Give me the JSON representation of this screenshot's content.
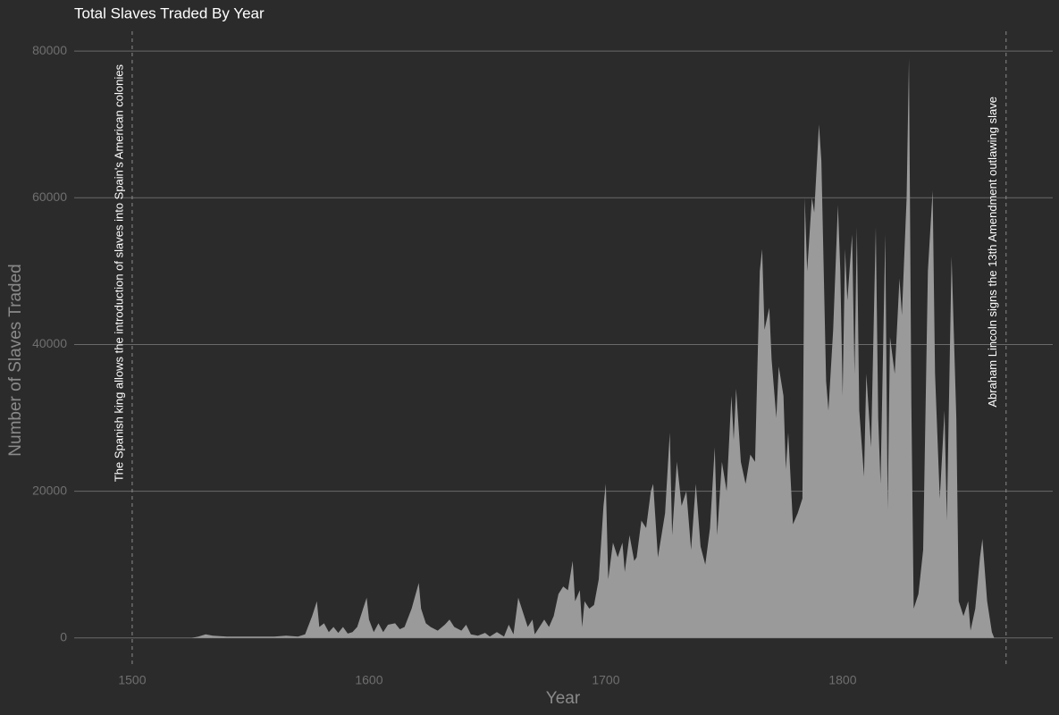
{
  "chart_data": {
    "type": "area",
    "title": "Total Slaves Traded By Year",
    "x_label": "Year",
    "y_label": "Number of Slaves Traded",
    "xlim": [
      1475.5,
      1888.7
    ],
    "ylim": [
      -3800,
      83300
    ],
    "xticks": [
      1500,
      1600,
      1700,
      1800
    ],
    "yticks": [
      0,
      20000,
      40000,
      60000,
      80000
    ],
    "grid": true,
    "color": "#9a9a9a",
    "vlines": [
      {
        "x": 1500,
        "label": "The Spanish king allows the introduction of slaves into Spain's American colonies"
      },
      {
        "x": 1869,
        "label": "Abraham Lincoln signs the 13th Amendment outlawing slave"
      }
    ],
    "x": [
      1525,
      1528,
      1531,
      1534,
      1540,
      1550,
      1560,
      1565,
      1570,
      1573,
      1576,
      1578,
      1579,
      1581,
      1583,
      1585,
      1587,
      1589,
      1591,
      1593,
      1595,
      1597,
      1599,
      1600,
      1602,
      1604,
      1606,
      1608,
      1611,
      1613,
      1615,
      1618,
      1621,
      1622,
      1624,
      1626,
      1629,
      1632,
      1634,
      1636,
      1639,
      1641,
      1643,
      1646,
      1649,
      1651,
      1654,
      1657,
      1659,
      1661,
      1663,
      1665,
      1667,
      1669,
      1670,
      1672,
      1674,
      1676,
      1678,
      1680,
      1682,
      1684,
      1686,
      1687,
      1689,
      1690,
      1691,
      1693,
      1695,
      1697,
      1699,
      1700,
      1701,
      1703,
      1705,
      1707,
      1708,
      1710,
      1712,
      1713,
      1715,
      1717,
      1719,
      1720,
      1722,
      1725,
      1727,
      1728,
      1730,
      1732,
      1734,
      1736,
      1738,
      1740,
      1742,
      1744,
      1746,
      1747,
      1749,
      1751,
      1753,
      1754,
      1755,
      1757,
      1759,
      1761,
      1763,
      1765,
      1766,
      1767,
      1769,
      1770,
      1772,
      1773,
      1775,
      1776,
      1777,
      1779,
      1781,
      1783,
      1784,
      1785,
      1787,
      1788,
      1790,
      1791,
      1793,
      1794,
      1796,
      1798,
      1799,
      1800,
      1801,
      1802,
      1804,
      1805,
      1806,
      1807,
      1809,
      1810,
      1812,
      1814,
      1815,
      1816,
      1818,
      1819,
      1820,
      1822,
      1824,
      1825,
      1827,
      1828,
      1829,
      1830,
      1832,
      1834,
      1836,
      1838,
      1839,
      1841,
      1843,
      1844,
      1846,
      1848,
      1849,
      1851,
      1853,
      1854,
      1856,
      1858,
      1859,
      1861,
      1863,
      1864
    ],
    "values": [
      0,
      200,
      500,
      300,
      200,
      200,
      200,
      300,
      200,
      500,
      3000,
      5000,
      1500,
      2000,
      800,
      1500,
      700,
      1500,
      600,
      800,
      1500,
      3500,
      5500,
      2500,
      800,
      2000,
      800,
      1800,
      2000,
      1200,
      1500,
      4000,
      7500,
      4000,
      2000,
      1500,
      1000,
      1800,
      2500,
      1500,
      1000,
      1800,
      500,
      300,
      700,
      200,
      800,
      200,
      1800,
      500,
      5500,
      3500,
      1500,
      2500,
      500,
      1500,
      2500,
      1500,
      3000,
      6000,
      7000,
      6500,
      10500,
      5000,
      6500,
      1500,
      5000,
      4000,
      4500,
      8000,
      18000,
      21000,
      8000,
      13000,
      11000,
      13000,
      9000,
      14000,
      10500,
      11000,
      16000,
      15000,
      20000,
      21000,
      11000,
      17000,
      28000,
      14000,
      24000,
      18000,
      20000,
      12000,
      21000,
      12500,
      10000,
      15000,
      26000,
      14000,
      24000,
      20000,
      33000,
      27000,
      34000,
      24000,
      21000,
      25000,
      24000,
      50000,
      53000,
      42000,
      45000,
      38000,
      30000,
      37000,
      33000,
      23000,
      28000,
      15500,
      17000,
      19000,
      60000,
      50000,
      60000,
      58000,
      70000,
      65000,
      35000,
      31000,
      42000,
      59000,
      50000,
      33000,
      53000,
      46000,
      55000,
      36000,
      56000,
      31000,
      22000,
      36000,
      26000,
      56000,
      30000,
      21000,
      55000,
      17500,
      41000,
      36000,
      49000,
      44000,
      60000,
      79000,
      32000,
      4000,
      6000,
      12000,
      50000,
      61000,
      36000,
      19000,
      31000,
      16000,
      52000,
      30000,
      5000,
      3000,
      5000,
      1000,
      4000,
      11000,
      13500,
      5000,
      800,
      0
    ]
  }
}
